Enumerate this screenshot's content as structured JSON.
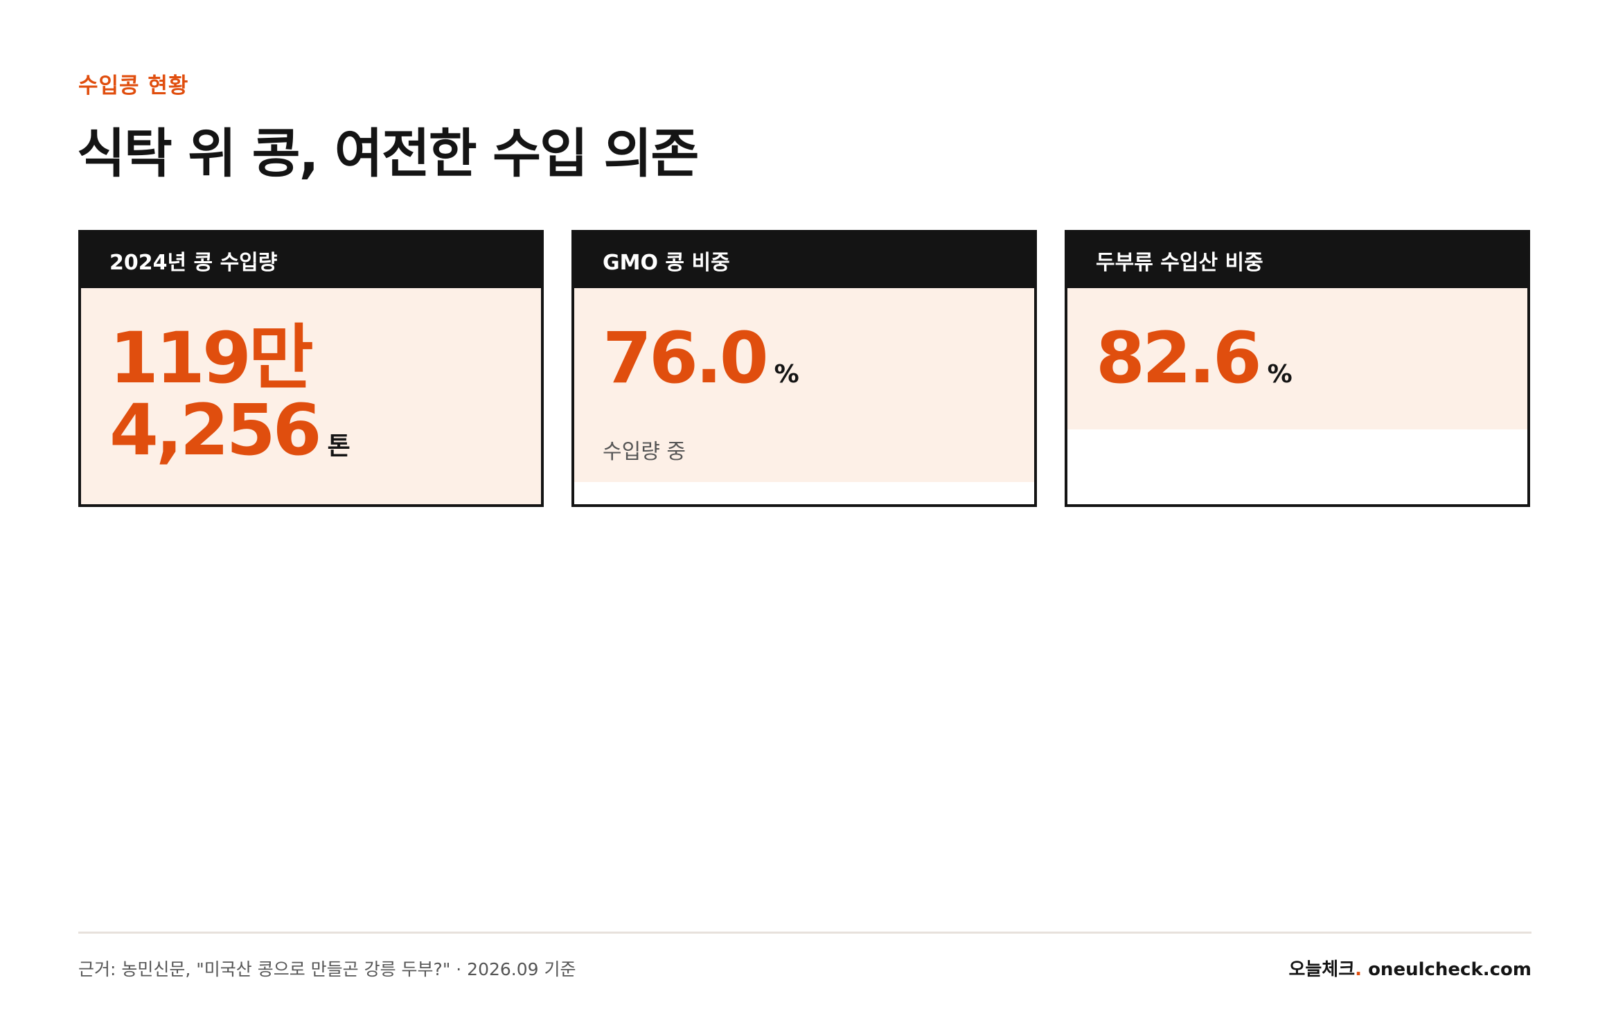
{
  "header": {
    "eyebrow": "수입콩 현황",
    "title": "식탁 위 콩, 여전한 수입 의존"
  },
  "cards": [
    {
      "heading": "2024년 콩 수입량",
      "value_line1": "119만",
      "value_line2": "4,256",
      "unit": "톤"
    },
    {
      "heading": "GMO 콩 비중",
      "value": "76.0",
      "unit": "%",
      "note": "수입량 중"
    },
    {
      "heading": "두부류 수입산 비중",
      "value": "82.6",
      "unit": "%"
    }
  ],
  "footer": {
    "source": "근거: 농민신문, \"미국산 콩으로 만들곤 강릉 두부?\" · 2026.09 기준",
    "brand_name": "오늘체크",
    "brand_dot": ".",
    "brand_domain": " oneulcheck.com"
  },
  "colors": {
    "accent": "#e04e0e",
    "card_header": "#141414",
    "card_fill": "#fdf0e7"
  }
}
